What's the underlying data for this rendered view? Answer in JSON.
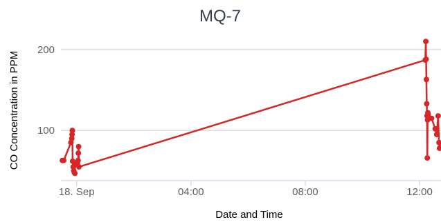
{
  "chart_data": {
    "type": "line",
    "title": "MQ-7",
    "xlabel": "Date and Time",
    "ylabel": "CO Concentration in PPM",
    "x_tick_labels": [
      "18. Sep",
      "04:00",
      "08:00",
      "12:00"
    ],
    "x_tick_hours": [
      0,
      4,
      8,
      12
    ],
    "y_tick_labels": [
      "100",
      "200"
    ],
    "y_ticks": [
      100,
      200
    ],
    "ylim": [
      38,
      222
    ],
    "xlim_hours": [
      -0.55,
      12.75
    ],
    "grid": true,
    "legend": "none",
    "colors": {
      "line": "#d62728",
      "grid": "#d8d8d8",
      "title": "#333f50"
    },
    "series": [
      {
        "points": [
          [
            -0.5,
            63
          ],
          [
            -0.45,
            63
          ],
          [
            -0.2,
            85
          ],
          [
            -0.17,
            90
          ],
          [
            -0.16,
            95
          ],
          [
            -0.15,
            100
          ],
          [
            -0.14,
            62
          ],
          [
            -0.12,
            55
          ],
          [
            -0.1,
            50
          ],
          [
            -0.08,
            48
          ],
          [
            -0.06,
            47
          ],
          [
            -0.05,
            58
          ],
          [
            0.03,
            60
          ],
          [
            0.05,
            63
          ],
          [
            0.06,
            72
          ],
          [
            0.07,
            80
          ],
          [
            0.08,
            55
          ],
          [
            12.2,
            187
          ],
          [
            12.22,
            210
          ],
          [
            12.23,
            188
          ],
          [
            12.24,
            163
          ],
          [
            12.25,
            133
          ],
          [
            12.26,
            118
          ],
          [
            12.27,
            66
          ],
          [
            12.28,
            113
          ],
          [
            12.29,
            122
          ],
          [
            12.3,
            120
          ],
          [
            12.42,
            115
          ],
          [
            12.55,
            102
          ],
          [
            12.6,
            95
          ],
          [
            12.65,
            118
          ],
          [
            12.68,
            85
          ],
          [
            12.7,
            78
          ],
          [
            12.75,
            80
          ]
        ]
      }
    ]
  }
}
